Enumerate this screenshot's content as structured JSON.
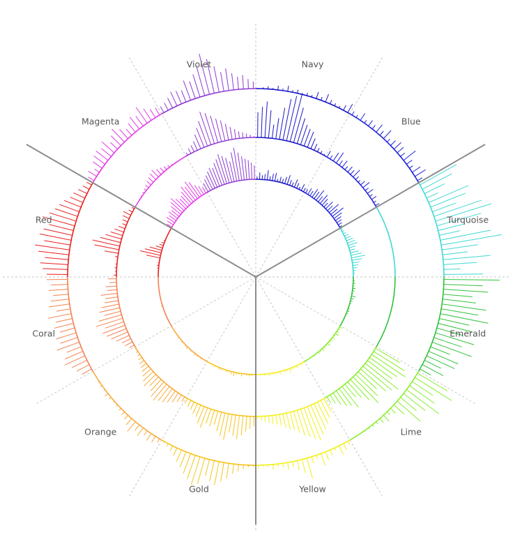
{
  "chart_data": {
    "type": "radial-bar",
    "title": "",
    "sectors": [
      {
        "label": "Navy",
        "color": "#1a16c8"
      },
      {
        "label": "Blue",
        "color": "#1f23dc"
      },
      {
        "label": "Turquoise",
        "color": "#3fd8d2"
      },
      {
        "label": "Emerald",
        "color": "#31c23a"
      },
      {
        "label": "Lime",
        "color": "#88ee2a"
      },
      {
        "label": "Yellow",
        "color": "#f3ef1c"
      },
      {
        "label": "Gold",
        "color": "#f6c41b"
      },
      {
        "label": "Orange",
        "color": "#f8a93a"
      },
      {
        "label": "Coral",
        "color": "#f4824f"
      },
      {
        "label": "Red",
        "color": "#e82020"
      },
      {
        "label": "Magenta",
        "color": "#e43ae6"
      },
      {
        "label": "Violet",
        "color": "#8e3ad3"
      }
    ],
    "tracks": [
      {
        "name": "outer track",
        "baseline_radius": 270,
        "scale": 1.0
      },
      {
        "name": "middle track",
        "baseline_radius": 200,
        "scale": 1.0
      },
      {
        "name": "inner track",
        "baseline_radius": 140,
        "scale": 1.0
      }
    ],
    "series": [
      {
        "name": "outer track",
        "values": [
          [
            1,
            2,
            4,
            2,
            6,
            3,
            8,
            3,
            5,
            2,
            4,
            3,
            10,
            5,
            12,
            6,
            4,
            3,
            8,
            14
          ],
          [
            6,
            4,
            12,
            5,
            10,
            7,
            14,
            8,
            16,
            6,
            10,
            14,
            12,
            8,
            22,
            10,
            6,
            14,
            18,
            8
          ],
          [
            60,
            48,
            32,
            18,
            62,
            54,
            36,
            72,
            84,
            66,
            40,
            30,
            74,
            88,
            52,
            36,
            68,
            48,
            24,
            56
          ],
          [
            80,
            56,
            64,
            42,
            48,
            64,
            54,
            70,
            44,
            50,
            38,
            58,
            42,
            60,
            30,
            46,
            44,
            26,
            34,
            18
          ],
          [
            50,
            62,
            36,
            44,
            58,
            40,
            30,
            44,
            20,
            10,
            6,
            12,
            8,
            4,
            3,
            2,
            2,
            1,
            1,
            1
          ],
          [
            6,
            10,
            14,
            4,
            8,
            12,
            18,
            6,
            10,
            30,
            20,
            14,
            8,
            10,
            6,
            4,
            8,
            3,
            2,
            5
          ],
          [
            2,
            3,
            6,
            10,
            14,
            22,
            28,
            34,
            30,
            24,
            38,
            42,
            36,
            30,
            24,
            18,
            12,
            8,
            4,
            2
          ],
          [
            6,
            10,
            12,
            8,
            14,
            10,
            18,
            12,
            8,
            6,
            4,
            3,
            2,
            4,
            6,
            2,
            3,
            2,
            1,
            1
          ],
          [
            16,
            20,
            24,
            32,
            28,
            22,
            34,
            26,
            30,
            22,
            28,
            24,
            34,
            20,
            30,
            26,
            22,
            28,
            24,
            30
          ],
          [
            30,
            36,
            40,
            34,
            44,
            50,
            38,
            46,
            42,
            36,
            48,
            40,
            34,
            30,
            26,
            20,
            18,
            14,
            10,
            8
          ],
          [
            10,
            14,
            8,
            16,
            20,
            22,
            18,
            24,
            14,
            20,
            26,
            18,
            12,
            16,
            22,
            18,
            28,
            20,
            14,
            12
          ],
          [
            10,
            12,
            16,
            22,
            20,
            18,
            30,
            26,
            34,
            44,
            60,
            50,
            38,
            28,
            32,
            24,
            18,
            20,
            14,
            10
          ]
        ]
      },
      {
        "name": "middle track",
        "values": [
          [
            36,
            44,
            52,
            40,
            20,
            30,
            46,
            60,
            66,
            72,
            52,
            38,
            30,
            26,
            24,
            16,
            10,
            6,
            4,
            2
          ],
          [
            10,
            6,
            14,
            18,
            8,
            12,
            6,
            10,
            8,
            14,
            6,
            4,
            8,
            12,
            6,
            10,
            5,
            8,
            4,
            6
          ],
          [
            0,
            0,
            0,
            0,
            0,
            0,
            0,
            0,
            0,
            0,
            0,
            0,
            0,
            0,
            0,
            0,
            0,
            0,
            0,
            0
          ],
          [
            0,
            0,
            0,
            0,
            0,
            0,
            0,
            0,
            0,
            0,
            0,
            0,
            0,
            0,
            0,
            0,
            0,
            0,
            0,
            0
          ],
          [
            40,
            52,
            58,
            48,
            44,
            60,
            54,
            48,
            36,
            44,
            52,
            40,
            30,
            24,
            38,
            30,
            26,
            20,
            14,
            10
          ],
          [
            22,
            28,
            34,
            40,
            46,
            52,
            48,
            42,
            38,
            32,
            26,
            24,
            20,
            16,
            14,
            12,
            10,
            8,
            6,
            4
          ],
          [
            14,
            18,
            22,
            28,
            34,
            30,
            26,
            38,
            34,
            28,
            20,
            24,
            22,
            30,
            26,
            18,
            16,
            12,
            10,
            8
          ],
          [
            8,
            12,
            16,
            20,
            24,
            26,
            30,
            28,
            22,
            18,
            24,
            20,
            16,
            12,
            10,
            8,
            6,
            4,
            3,
            2
          ],
          [
            8,
            12,
            14,
            20,
            26,
            30,
            34,
            28,
            40,
            34,
            24,
            30,
            26,
            20,
            18,
            24,
            14,
            16,
            10,
            12
          ],
          [
            4,
            2,
            3,
            2,
            1,
            4,
            20,
            36,
            40,
            30,
            24,
            18,
            14,
            10,
            6,
            8,
            10,
            12,
            6,
            4
          ],
          [
            0,
            0,
            1,
            2,
            3,
            4,
            6,
            8,
            10,
            12,
            14,
            10,
            8,
            6,
            4,
            2,
            1,
            0,
            0,
            0
          ],
          [
            4,
            8,
            10,
            14,
            22,
            30,
            38,
            50,
            46,
            40,
            34,
            30,
            24,
            18,
            14,
            10,
            8,
            6,
            4,
            2
          ]
        ]
      },
      {
        "name": "inner track",
        "values": [
          [
            4,
            10,
            6,
            8,
            14,
            6,
            10,
            12,
            4,
            8,
            6,
            10,
            14,
            8,
            6,
            12,
            8,
            4,
            10,
            6
          ],
          [
            6,
            10,
            8,
            14,
            12,
            18,
            10,
            16,
            12,
            8,
            14,
            10,
            18,
            12,
            20,
            14,
            10,
            8,
            6,
            4
          ],
          [
            2,
            3,
            4,
            6,
            8,
            10,
            12,
            14,
            10,
            8,
            12,
            16,
            20,
            14,
            10,
            8,
            6,
            4,
            2,
            1
          ],
          [
            1,
            2,
            3,
            2,
            4,
            3,
            2,
            6,
            4,
            3,
            2,
            1,
            2,
            3,
            2,
            1,
            1,
            1,
            1,
            1
          ],
          [
            4,
            2,
            3,
            6,
            2,
            4,
            3,
            2,
            5,
            2,
            3,
            4,
            2,
            3,
            1,
            2,
            1,
            1,
            1,
            1
          ],
          [
            2,
            3,
            1,
            4,
            2,
            3,
            6,
            2,
            3,
            1,
            4,
            2,
            1,
            2,
            3,
            1,
            2,
            1,
            1,
            1
          ],
          [
            1,
            2,
            3,
            2,
            1,
            4,
            2,
            3,
            6,
            4,
            2,
            3,
            1,
            2,
            3,
            1,
            2,
            1,
            1,
            1
          ],
          [
            1,
            1,
            2,
            1,
            2,
            3,
            1,
            2,
            1,
            3,
            2,
            1,
            2,
            1,
            2,
            1,
            1,
            1,
            1,
            1
          ],
          [
            0,
            0,
            1,
            0,
            0,
            1,
            0,
            1,
            2,
            1,
            0,
            1,
            0,
            0,
            1,
            0,
            0,
            1,
            0,
            0
          ],
          [
            0,
            0,
            1,
            2,
            3,
            2,
            1,
            20,
            30,
            24,
            18,
            10,
            6,
            4,
            2,
            1,
            0,
            0,
            0,
            0
          ],
          [
            8,
            10,
            14,
            12,
            16,
            14,
            18,
            22,
            26,
            20,
            16,
            18,
            22,
            28,
            24,
            30,
            26,
            18,
            14,
            10
          ],
          [
            14,
            18,
            22,
            26,
            30,
            28,
            34,
            38,
            44,
            40,
            36,
            30,
            42,
            48,
            40,
            34,
            30,
            28,
            24,
            20
          ]
        ]
      }
    ],
    "dividers": [
      "Turquoise/Blue boundary",
      "Red/Magenta boundary",
      "Yellow/Gold boundary"
    ],
    "grid": true
  }
}
